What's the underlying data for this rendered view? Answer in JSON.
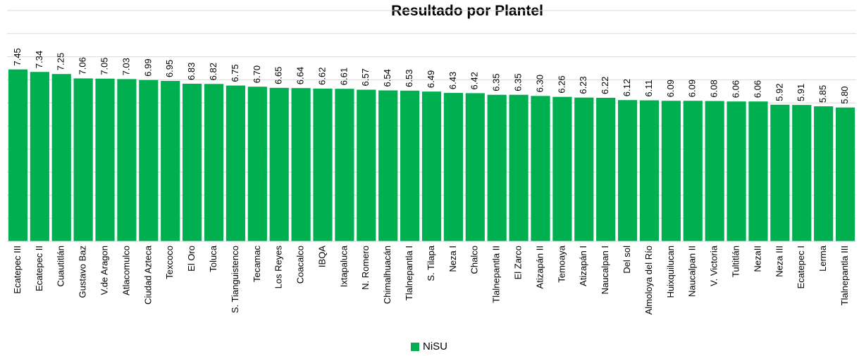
{
  "chart_data": {
    "type": "bar",
    "title": "Resultado por Plantel",
    "categories": [
      "Ecatepec III",
      "Ecatepec II",
      "Cuautitlán",
      "Gustavo Baz",
      "V.de Aragon",
      "Atlacomulco",
      "Ciudad Azteca",
      "Texcoco",
      "El Oro",
      "Toluca",
      "S. Tianguistenco",
      "Tecamac",
      "Los Reyes",
      "Coacalco",
      "IBQA",
      "Ixtapaluca",
      "N. Romero",
      "Chimalhuacán",
      "Tlalnepantla I",
      "S. Tilapa",
      "Neza I",
      "Chalco",
      "Tlalnepantla II",
      "El Zarco",
      "Atizapán II",
      "Temoaya",
      "Atizapán I",
      "Naucalpan I",
      "Del sol",
      "Almoloya del Río",
      "Huixquilucan",
      "Naucalpan II",
      "V. Victoria",
      "Tultitlán",
      "NezaII",
      "Neza III",
      "Ecatepec I",
      "Lerma",
      "Tlalnepantla III"
    ],
    "series": [
      {
        "name": "NiSU",
        "color": "#00b050",
        "values": [
          7.45,
          7.34,
          7.25,
          7.06,
          7.05,
          7.03,
          6.99,
          6.95,
          6.83,
          6.82,
          6.75,
          6.7,
          6.65,
          6.64,
          6.62,
          6.61,
          6.57,
          6.54,
          6.53,
          6.49,
          6.43,
          6.42,
          6.35,
          6.35,
          6.3,
          6.26,
          6.23,
          6.22,
          6.12,
          6.11,
          6.09,
          6.09,
          6.08,
          6.06,
          6.06,
          5.92,
          5.91,
          5.85,
          5.8
        ],
        "value_labels": [
          "7.45",
          "7.34",
          "7.25",
          "7.06",
          "7.05",
          "7.03",
          "6.99",
          "6.95",
          "6.83",
          "6.82",
          "6.75",
          "6.70",
          "6.65",
          "6.64",
          "6.62",
          "6.61",
          "6.57",
          "6.54",
          "6.53",
          "6.49",
          "6.43",
          "6.42",
          "6.35",
          "6.35",
          "6.30",
          "6.26",
          "6.23",
          "6.22",
          "6.12",
          "6.11",
          "6.09",
          "6.09",
          "6.08",
          "6.06",
          "6.06",
          "5.92",
          "5.91",
          "5.85",
          "5.80"
        ]
      }
    ],
    "ylim": [
      0,
      10
    ],
    "yticks": [
      0,
      1,
      2,
      3,
      4,
      5,
      6,
      7,
      8,
      9,
      10
    ],
    "grid": true,
    "legend": "bottom"
  }
}
